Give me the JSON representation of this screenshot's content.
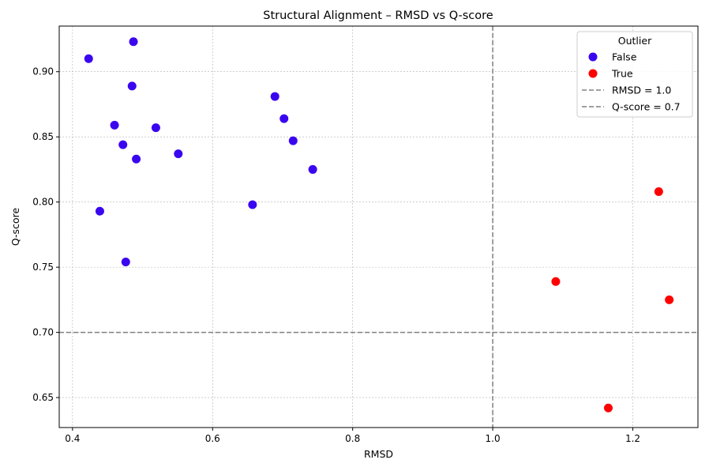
{
  "chart_data": {
    "type": "scatter",
    "title": "Structural Alignment – RMSD vs Q-score",
    "xlabel": "RMSD",
    "ylabel": "Q-score",
    "xlim": [
      0.381,
      1.293
    ],
    "ylim": [
      0.627,
      0.935
    ],
    "xticks": [
      0.4,
      0.6,
      0.8,
      1.0,
      1.2
    ],
    "yticks": [
      0.65,
      0.7,
      0.75,
      0.8,
      0.85,
      0.9
    ],
    "xtick_labels": [
      "0.4",
      "0.6",
      "0.8",
      "1.0",
      "1.2"
    ],
    "ytick_labels": [
      "0.65",
      "0.70",
      "0.75",
      "0.80",
      "0.85",
      "0.90"
    ],
    "grid": true,
    "legend": {
      "title": "Outlier",
      "placement": "top-right",
      "entries": [
        "False",
        "True",
        "RMSD = 1.0",
        "Q-score = 0.7"
      ]
    },
    "reference_lines": [
      {
        "axis": "x",
        "value": 1.0,
        "label": "RMSD = 1.0",
        "color": "#808080",
        "style": "dashed"
      },
      {
        "axis": "y",
        "value": 0.7,
        "label": "Q-score = 0.7",
        "color": "#808080",
        "style": "dashed"
      }
    ],
    "series": [
      {
        "name": "False",
        "color": "#3a06f0",
        "points": [
          {
            "x": 0.423,
            "y": 0.91
          },
          {
            "x": 0.487,
            "y": 0.923
          },
          {
            "x": 0.485,
            "y": 0.889
          },
          {
            "x": 0.46,
            "y": 0.859
          },
          {
            "x": 0.519,
            "y": 0.857
          },
          {
            "x": 0.472,
            "y": 0.844
          },
          {
            "x": 0.491,
            "y": 0.833
          },
          {
            "x": 0.551,
            "y": 0.837
          },
          {
            "x": 0.439,
            "y": 0.793
          },
          {
            "x": 0.476,
            "y": 0.754
          },
          {
            "x": 0.689,
            "y": 0.881
          },
          {
            "x": 0.702,
            "y": 0.864
          },
          {
            "x": 0.715,
            "y": 0.847
          },
          {
            "x": 0.743,
            "y": 0.825
          },
          {
            "x": 0.657,
            "y": 0.798
          }
        ]
      },
      {
        "name": "True",
        "color": "#ff0000",
        "points": [
          {
            "x": 1.237,
            "y": 0.808
          },
          {
            "x": 1.09,
            "y": 0.739
          },
          {
            "x": 1.252,
            "y": 0.725
          },
          {
            "x": 1.165,
            "y": 0.642
          }
        ]
      }
    ]
  }
}
